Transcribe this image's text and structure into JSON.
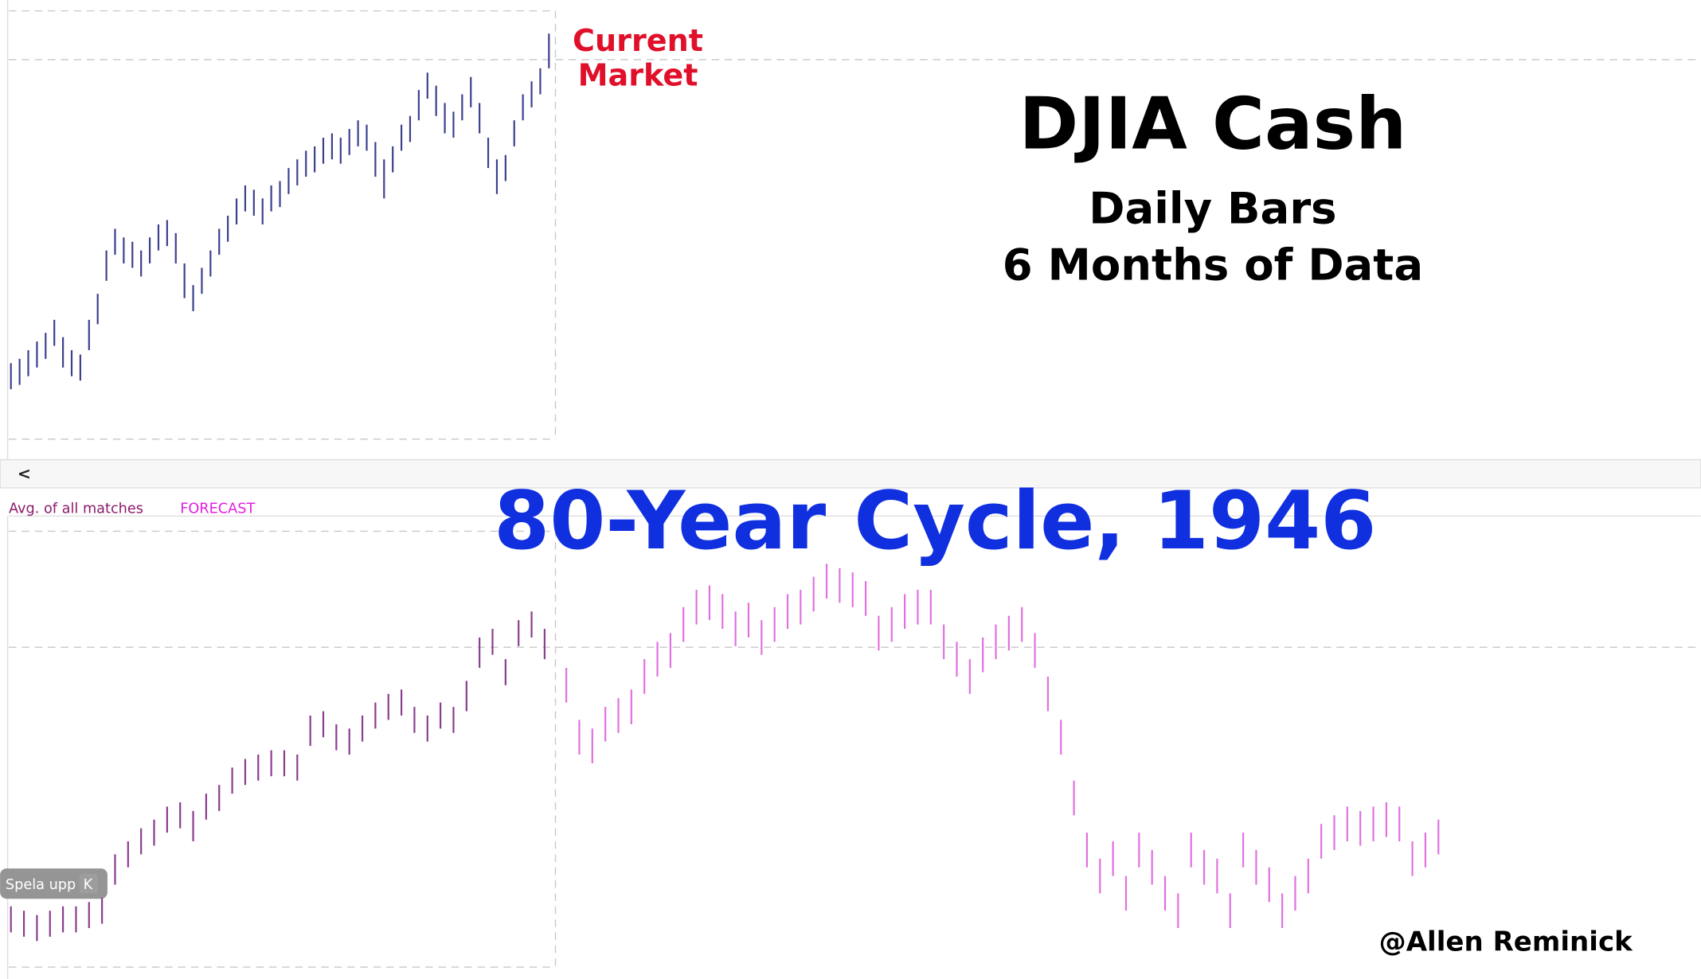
{
  "chart_data": [
    {
      "type": "range-bar",
      "title": "DJIA Cash",
      "subtitle": [
        "Daily Bars",
        "6 Months of Data"
      ],
      "annotation": [
        "Current",
        "Market"
      ],
      "series": [
        {
          "color": "#3b3f8c",
          "low": [
            9,
            10,
            12,
            14,
            16,
            19,
            14,
            12,
            11,
            18,
            24,
            34,
            40,
            38,
            37,
            35,
            38,
            41,
            42,
            38,
            30,
            27,
            31,
            35,
            40,
            43,
            47,
            50,
            49,
            47,
            50,
            51,
            54,
            56,
            58,
            59,
            61,
            62,
            61,
            63,
            65,
            64,
            58,
            53,
            59,
            64,
            66,
            71,
            76,
            72,
            68,
            67,
            71,
            74,
            68,
            60,
            54,
            57,
            65,
            71,
            74,
            77,
            83
          ],
          "high": [
            15,
            16,
            18,
            20,
            22,
            25,
            21,
            18,
            17,
            25,
            31,
            41,
            46,
            44,
            43,
            41,
            44,
            47,
            48,
            45,
            38,
            33,
            37,
            41,
            46,
            49,
            53,
            56,
            55,
            53,
            56,
            57,
            60,
            62,
            64,
            65,
            67,
            68,
            67,
            69,
            71,
            70,
            66,
            62,
            65,
            70,
            72,
            78,
            82,
            79,
            75,
            73,
            77,
            81,
            75,
            67,
            62,
            63,
            71,
            77,
            80,
            83,
            91
          ]
        }
      ]
    },
    {
      "type": "range-bar",
      "title": "80-Year Cycle, 1946",
      "annotation": "@Allen Reminick",
      "series": [
        {
          "name": "Avg. of all matches",
          "color": "#8a3c8e",
          "low": [
            5,
            4,
            3,
            4,
            5,
            5,
            6,
            7,
            16,
            20,
            23,
            25,
            28,
            29,
            26,
            31,
            33,
            37,
            39,
            40,
            41,
            41,
            40,
            48,
            50,
            47,
            46,
            49,
            52,
            54,
            55,
            51,
            49,
            52,
            51,
            56,
            66,
            69,
            62,
            71,
            73,
            68
          ],
          "high": [
            11,
            10,
            9,
            10,
            11,
            11,
            12,
            13,
            23,
            26,
            29,
            31,
            34,
            35,
            33,
            37,
            39,
            43,
            45,
            46,
            47,
            47,
            46,
            55,
            56,
            53,
            52,
            55,
            58,
            60,
            61,
            57,
            55,
            58,
            57,
            63,
            73,
            75,
            68,
            77,
            79,
            75
          ]
        },
        {
          "name": "FORECAST",
          "color": "#e070e0",
          "low": [
            58,
            46,
            44,
            49,
            51,
            53,
            60,
            64,
            66,
            72,
            76,
            77,
            75,
            71,
            73,
            69,
            72,
            75,
            76,
            79,
            82,
            81,
            80,
            78,
            70,
            72,
            75,
            76,
            76,
            68,
            64,
            60,
            65,
            68,
            70,
            72,
            66,
            56,
            46,
            32,
            20,
            14,
            18,
            10,
            20,
            16,
            10,
            6,
            20,
            16,
            14,
            6,
            20,
            16,
            12,
            6,
            10,
            14,
            22,
            24,
            26,
            25,
            26,
            27,
            26,
            18,
            20,
            23
          ],
          "high": [
            66,
            54,
            52,
            57,
            59,
            61,
            68,
            72,
            74,
            80,
            84,
            85,
            83,
            79,
            81,
            77,
            80,
            83,
            84,
            87,
            90,
            89,
            88,
            86,
            78,
            80,
            83,
            84,
            84,
            76,
            72,
            68,
            73,
            76,
            78,
            80,
            74,
            64,
            54,
            40,
            28,
            22,
            26,
            18,
            28,
            24,
            18,
            14,
            28,
            24,
            22,
            14,
            28,
            24,
            20,
            14,
            18,
            22,
            30,
            32,
            34,
            33,
            34,
            35,
            34,
            26,
            28,
            31
          ]
        }
      ]
    }
  ],
  "ui": {
    "back": "<",
    "play": "Spela upp",
    "key": "K"
  }
}
